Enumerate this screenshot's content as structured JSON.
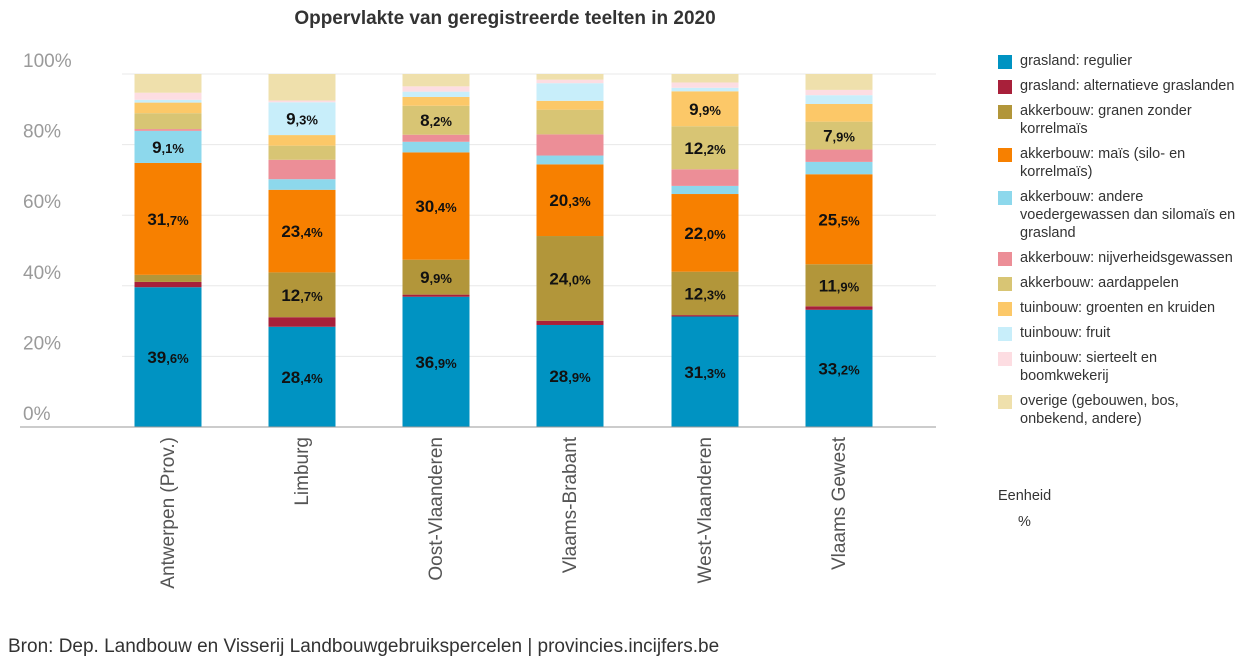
{
  "chart_data": {
    "type": "bar",
    "stacked": true,
    "title": "Oppervlakte van geregistreerde teelten in 2020",
    "categories": [
      "Antwerpen (Prov.)",
      "Limburg",
      "Oost-Vlaanderen",
      "Vlaams-Brabant",
      "West-Vlaanderen",
      "Vlaams Gewest"
    ],
    "ylim": [
      0,
      100
    ],
    "yticks": [
      "0%",
      "20%",
      "40%",
      "60%",
      "80%",
      "100%"
    ],
    "grid": true,
    "legend_position": "right",
    "series": [
      {
        "name": "grasland: regulier",
        "color": "#0093c2",
        "values": [
          39.6,
          28.4,
          36.9,
          28.9,
          31.3,
          33.2
        ],
        "labels": [
          "39,6%",
          "28,4%",
          "36,9%",
          "28,9%",
          "31,3%",
          "33,2%"
        ]
      },
      {
        "name": "grasland: alternatieve graslanden",
        "color": "#a8203a",
        "values": [
          1.5,
          2.7,
          0.6,
          1.2,
          0.4,
          1.0
        ],
        "labels": [
          "",
          "",
          "",
          "",
          "",
          ""
        ]
      },
      {
        "name": "akkerbouw: granen zonder korrelmaïs",
        "color": "#b2963a",
        "values": [
          2.0,
          12.7,
          9.9,
          24.0,
          12.3,
          11.9
        ],
        "labels": [
          "",
          "12,7%",
          "9,9%",
          "24,0%",
          "12,3%",
          "11,9%"
        ]
      },
      {
        "name": "akkerbouw: maïs (silo- en korrelmaïs)",
        "color": "#f78000",
        "values": [
          31.7,
          23.4,
          30.4,
          20.3,
          22.0,
          25.5
        ],
        "labels": [
          "31,7%",
          "23,4%",
          "30,4%",
          "20,3%",
          "22,0%",
          "25,5%"
        ]
      },
      {
        "name": "akkerbouw: andere voedergewassen dan silomaïs en grasland",
        "color": "#8dd8ec",
        "values": [
          9.1,
          3.0,
          3.0,
          2.5,
          2.3,
          3.5
        ],
        "labels": [
          "9,1%",
          "",
          "",
          "",
          "",
          ""
        ]
      },
      {
        "name": "akkerbouw: nijverheidsgewassen",
        "color": "#ec8e97",
        "values": [
          0.5,
          5.5,
          2.0,
          6.0,
          4.7,
          3.5
        ],
        "labels": [
          "",
          "",
          "",
          "",
          "",
          ""
        ]
      },
      {
        "name": "akkerbouw: aardappelen",
        "color": "#d8c574",
        "values": [
          4.5,
          4.0,
          8.2,
          7.0,
          12.2,
          7.9
        ],
        "labels": [
          "",
          "",
          "8,2%",
          "",
          "12,2%",
          "7,9%"
        ]
      },
      {
        "name": "tuinbouw: groenten en kruiden",
        "color": "#fcc868",
        "values": [
          3.0,
          3.0,
          2.5,
          2.5,
          9.9,
          5.0
        ],
        "labels": [
          "",
          "",
          "",
          "",
          "9,9%",
          ""
        ]
      },
      {
        "name": "tuinbouw: fruit",
        "color": "#c8eefa",
        "values": [
          0.8,
          9.3,
          1.5,
          5.0,
          1.0,
          2.5
        ],
        "labels": [
          "",
          "9,3%",
          "",
          "",
          "",
          ""
        ]
      },
      {
        "name": "tuinbouw: sierteelt en boomkwekerij",
        "color": "#fddde2",
        "values": [
          2.0,
          0.5,
          1.5,
          1.0,
          1.5,
          1.5
        ],
        "labels": [
          "",
          "",
          "",
          "",
          "",
          ""
        ]
      },
      {
        "name": "overige (gebouwen, bos, onbekend, andere)",
        "color": "#efe0ac",
        "values": [
          5.3,
          7.5,
          3.5,
          1.6,
          2.4,
          4.5
        ],
        "labels": [
          "",
          "",
          "",
          "",
          "",
          ""
        ]
      }
    ]
  },
  "legend": {
    "unit_title": "Eenheid",
    "unit_value": "%"
  },
  "footer": {
    "source": "Bron: Dep. Landbouw en Visserij Landbouwgebruikspercelen | provincies.incijfers.be"
  }
}
